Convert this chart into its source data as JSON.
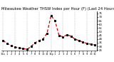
{
  "title": "Milwaukee Weather THSW Index per Hour (F) (Last 24 Hours)",
  "x_values": [
    0,
    1,
    2,
    3,
    4,
    5,
    6,
    7,
    8,
    9,
    10,
    11,
    12,
    13,
    14,
    15,
    16,
    17,
    18,
    19,
    20,
    21,
    22,
    23
  ],
  "y_values": [
    38,
    34,
    31,
    29,
    28,
    27,
    26,
    30,
    35,
    38,
    40,
    48,
    72,
    65,
    45,
    43,
    46,
    44,
    40,
    38,
    36,
    34,
    33,
    32
  ],
  "line_color": "#cc0000",
  "marker_color": "#000000",
  "background_color": "#ffffff",
  "grid_color": "#888888",
  "title_fontsize": 3.8,
  "ylim": [
    24,
    78
  ],
  "yticks": [
    25,
    30,
    35,
    40,
    45,
    50,
    55,
    60,
    65,
    70,
    75
  ],
  "xtick_labels": [
    "12a",
    "1",
    "2",
    "3",
    "4",
    "5",
    "6",
    "7",
    "8",
    "9",
    "10",
    "11",
    "12p",
    "1",
    "2",
    "3",
    "4",
    "5",
    "6",
    "7",
    "8",
    "9",
    "10",
    "11"
  ],
  "vgrid_positions": [
    0,
    3,
    6,
    9,
    12,
    15,
    18,
    21,
    23
  ]
}
